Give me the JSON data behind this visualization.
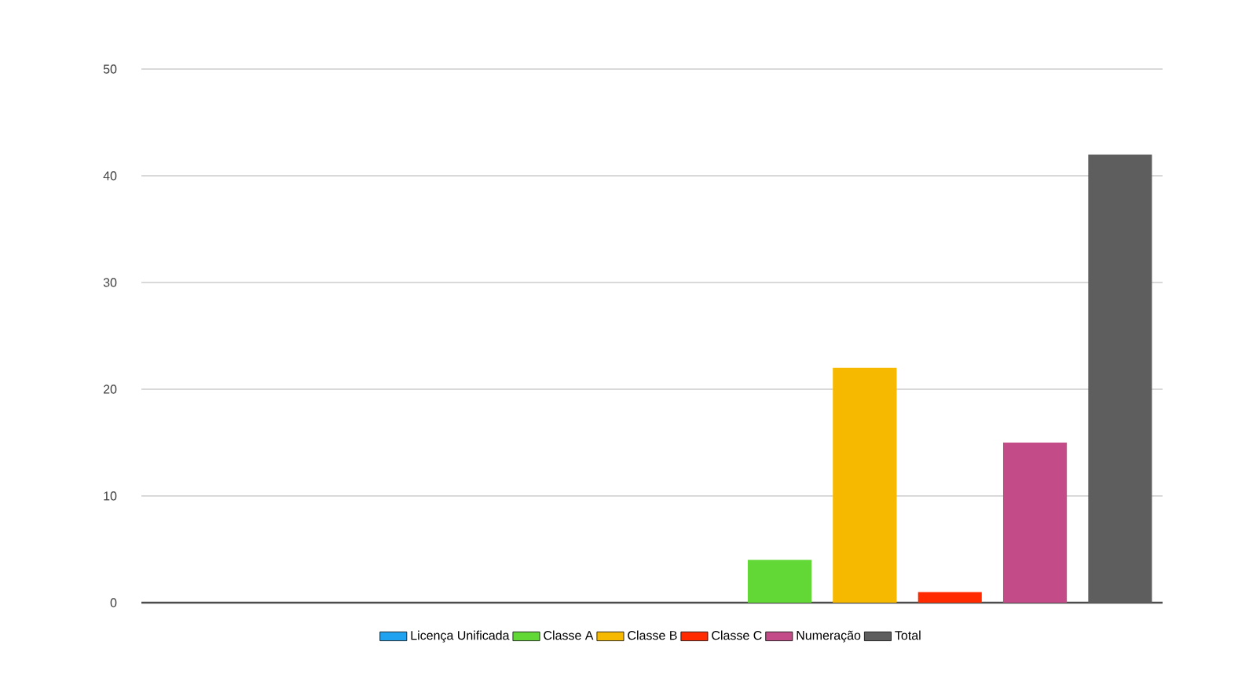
{
  "chart_data": {
    "type": "bar",
    "categories": [
      null,
      null
    ],
    "series": [
      {
        "name": "Licença Unificada",
        "color": "#1fa2f0",
        "values": [
          null,
          0
        ]
      },
      {
        "name": "Classe A",
        "color": "#62d836",
        "values": [
          null,
          4
        ]
      },
      {
        "name": "Classe B",
        "color": "#f6b900",
        "values": [
          null,
          22
        ]
      },
      {
        "name": "Classe C",
        "color": "#ff2a00",
        "values": [
          null,
          1
        ]
      },
      {
        "name": "Numeração",
        "color": "#c34b87",
        "values": [
          null,
          15
        ]
      },
      {
        "name": "Total",
        "color": "#5e5e5e",
        "values": [
          null,
          42
        ]
      }
    ],
    "ylim": [
      0,
      50
    ],
    "yticks": [
      0,
      10,
      20,
      30,
      40,
      50
    ],
    "grid": "y",
    "legend": "bottom"
  }
}
